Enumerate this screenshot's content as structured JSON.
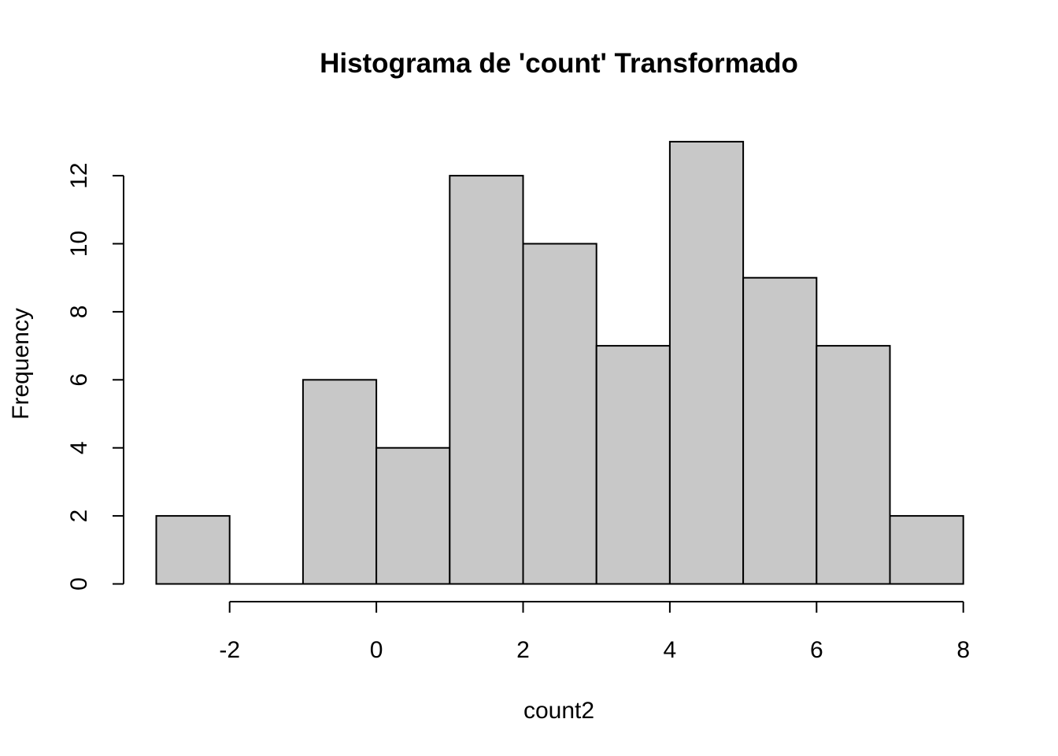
{
  "chart_data": {
    "type": "bar",
    "title": "Histograma de 'count' Transformado",
    "xlabel": "count2",
    "ylabel": "Frequency",
    "bins": [
      {
        "start": -3,
        "end": -2,
        "count": 2
      },
      {
        "start": -2,
        "end": -1,
        "count": 0
      },
      {
        "start": -1,
        "end": 0,
        "count": 6
      },
      {
        "start": 0,
        "end": 1,
        "count": 4
      },
      {
        "start": 1,
        "end": 2,
        "count": 12
      },
      {
        "start": 2,
        "end": 3,
        "count": 10
      },
      {
        "start": 3,
        "end": 4,
        "count": 7
      },
      {
        "start": 4,
        "end": 5,
        "count": 13
      },
      {
        "start": 5,
        "end": 6,
        "count": 9
      },
      {
        "start": 6,
        "end": 7,
        "count": 7
      },
      {
        "start": 7,
        "end": 8,
        "count": 2
      }
    ],
    "x_ticks": [
      "-2",
      "0",
      "2",
      "4",
      "6",
      "8"
    ],
    "y_ticks": [
      "0",
      "2",
      "4",
      "6",
      "8",
      "10",
      "12"
    ],
    "xlim": [
      -3,
      8
    ],
    "ylim": [
      0,
      13
    ],
    "grid": false,
    "bar_color": "#c8c8c8",
    "edge_color": "#000000"
  }
}
